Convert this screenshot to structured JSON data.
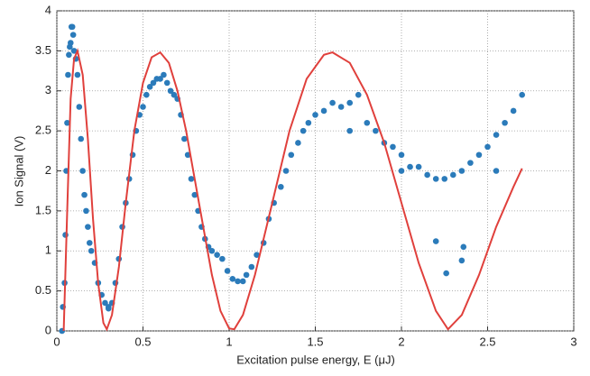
{
  "chart_data": {
    "type": "scatter_line",
    "xlabel": "Excitation pulse energy, E (μJ)",
    "ylabel": "Ion Signal (V)",
    "xlim": [
      0,
      3
    ],
    "ylim": [
      0,
      4
    ],
    "xticks": [
      0,
      0.5,
      1,
      1.5,
      2,
      2.5,
      3
    ],
    "yticks": [
      0,
      0.5,
      1,
      1.5,
      2,
      2.5,
      3,
      3.5,
      4
    ],
    "grid": true,
    "series": [
      {
        "kind": "scatter",
        "color": "#2b7bba",
        "x": [
          0.03,
          0.035,
          0.045,
          0.05,
          0.055,
          0.06,
          0.065,
          0.07,
          0.075,
          0.08,
          0.085,
          0.09,
          0.095,
          0.1,
          0.11,
          0.12,
          0.13,
          0.14,
          0.15,
          0.16,
          0.17,
          0.18,
          0.19,
          0.2,
          0.22,
          0.24,
          0.26,
          0.28,
          0.3,
          0.32,
          0.34,
          0.36,
          0.38,
          0.4,
          0.42,
          0.44,
          0.46,
          0.48,
          0.5,
          0.52,
          0.54,
          0.56,
          0.58,
          0.6,
          0.62,
          0.64,
          0.66,
          0.68,
          0.7,
          0.72,
          0.74,
          0.76,
          0.78,
          0.8,
          0.82,
          0.84,
          0.86,
          0.88,
          0.9,
          0.93,
          0.96,
          0.99,
          1.02,
          1.05,
          1.08,
          1.1,
          1.13,
          1.16,
          1.2,
          1.23,
          1.26,
          1.3,
          1.33,
          1.36,
          1.4,
          1.43,
          1.46,
          1.5,
          1.55,
          1.6,
          1.65,
          1.7,
          1.75,
          1.8,
          1.85,
          1.9,
          1.95,
          2.0,
          2.05,
          2.1,
          2.15,
          2.2,
          2.25,
          2.3,
          2.35,
          2.4,
          2.45,
          2.5,
          2.55,
          2.6,
          2.65,
          2.7,
          2.2,
          2.26,
          2.35,
          2.36,
          2.55,
          0.3,
          2.0,
          1.7
        ],
        "values": [
          0,
          0.3,
          0.6,
          1.2,
          2.0,
          2.6,
          3.2,
          3.45,
          3.55,
          3.6,
          3.8,
          3.8,
          3.7,
          3.5,
          3.4,
          3.2,
          2.8,
          2.4,
          2.0,
          1.7,
          1.5,
          1.3,
          1.1,
          1.0,
          0.85,
          0.6,
          0.45,
          0.35,
          0.3,
          0.35,
          0.6,
          0.9,
          1.3,
          1.6,
          1.9,
          2.2,
          2.5,
          2.7,
          2.8,
          2.95,
          3.05,
          3.1,
          3.15,
          3.15,
          3.2,
          3.1,
          3.0,
          2.95,
          2.9,
          2.7,
          2.4,
          2.2,
          1.9,
          1.7,
          1.5,
          1.3,
          1.15,
          1.05,
          1.0,
          0.95,
          0.9,
          0.75,
          0.65,
          0.62,
          0.62,
          0.7,
          0.8,
          0.95,
          1.1,
          1.4,
          1.6,
          1.8,
          2.0,
          2.2,
          2.35,
          2.5,
          2.6,
          2.7,
          2.75,
          2.85,
          2.8,
          2.85,
          2.95,
          2.6,
          2.5,
          2.35,
          2.3,
          2.2,
          2.05,
          2.05,
          1.95,
          1.9,
          1.9,
          1.95,
          2.0,
          2.1,
          2.2,
          2.3,
          2.45,
          2.6,
          2.75,
          2.95,
          1.12,
          0.72,
          0.88,
          1.05,
          2.0,
          0.28,
          2.0,
          2.5
        ]
      },
      {
        "kind": "line",
        "color": "#e0403c",
        "x": [
          0.04,
          0.06,
          0.08,
          0.1,
          0.12,
          0.15,
          0.18,
          0.21,
          0.24,
          0.27,
          0.29,
          0.32,
          0.36,
          0.4,
          0.45,
          0.5,
          0.55,
          0.6,
          0.65,
          0.7,
          0.75,
          0.8,
          0.85,
          0.9,
          0.95,
          1.0,
          1.03,
          1.08,
          1.15,
          1.25,
          1.35,
          1.45,
          1.55,
          1.6,
          1.7,
          1.8,
          1.9,
          2.0,
          2.1,
          2.2,
          2.27,
          2.35,
          2.45,
          2.55,
          2.65,
          2.7
        ],
        "values": [
          0,
          1.5,
          2.9,
          3.4,
          3.5,
          3.2,
          2.4,
          1.4,
          0.6,
          0.1,
          0.02,
          0.2,
          0.8,
          1.6,
          2.5,
          3.1,
          3.42,
          3.48,
          3.35,
          3.0,
          2.5,
          1.9,
          1.3,
          0.7,
          0.25,
          0.03,
          0.02,
          0.2,
          0.7,
          1.6,
          2.5,
          3.15,
          3.45,
          3.48,
          3.35,
          2.95,
          2.35,
          1.6,
          0.85,
          0.25,
          0.02,
          0.2,
          0.7,
          1.3,
          1.8,
          2.03
        ]
      }
    ]
  }
}
